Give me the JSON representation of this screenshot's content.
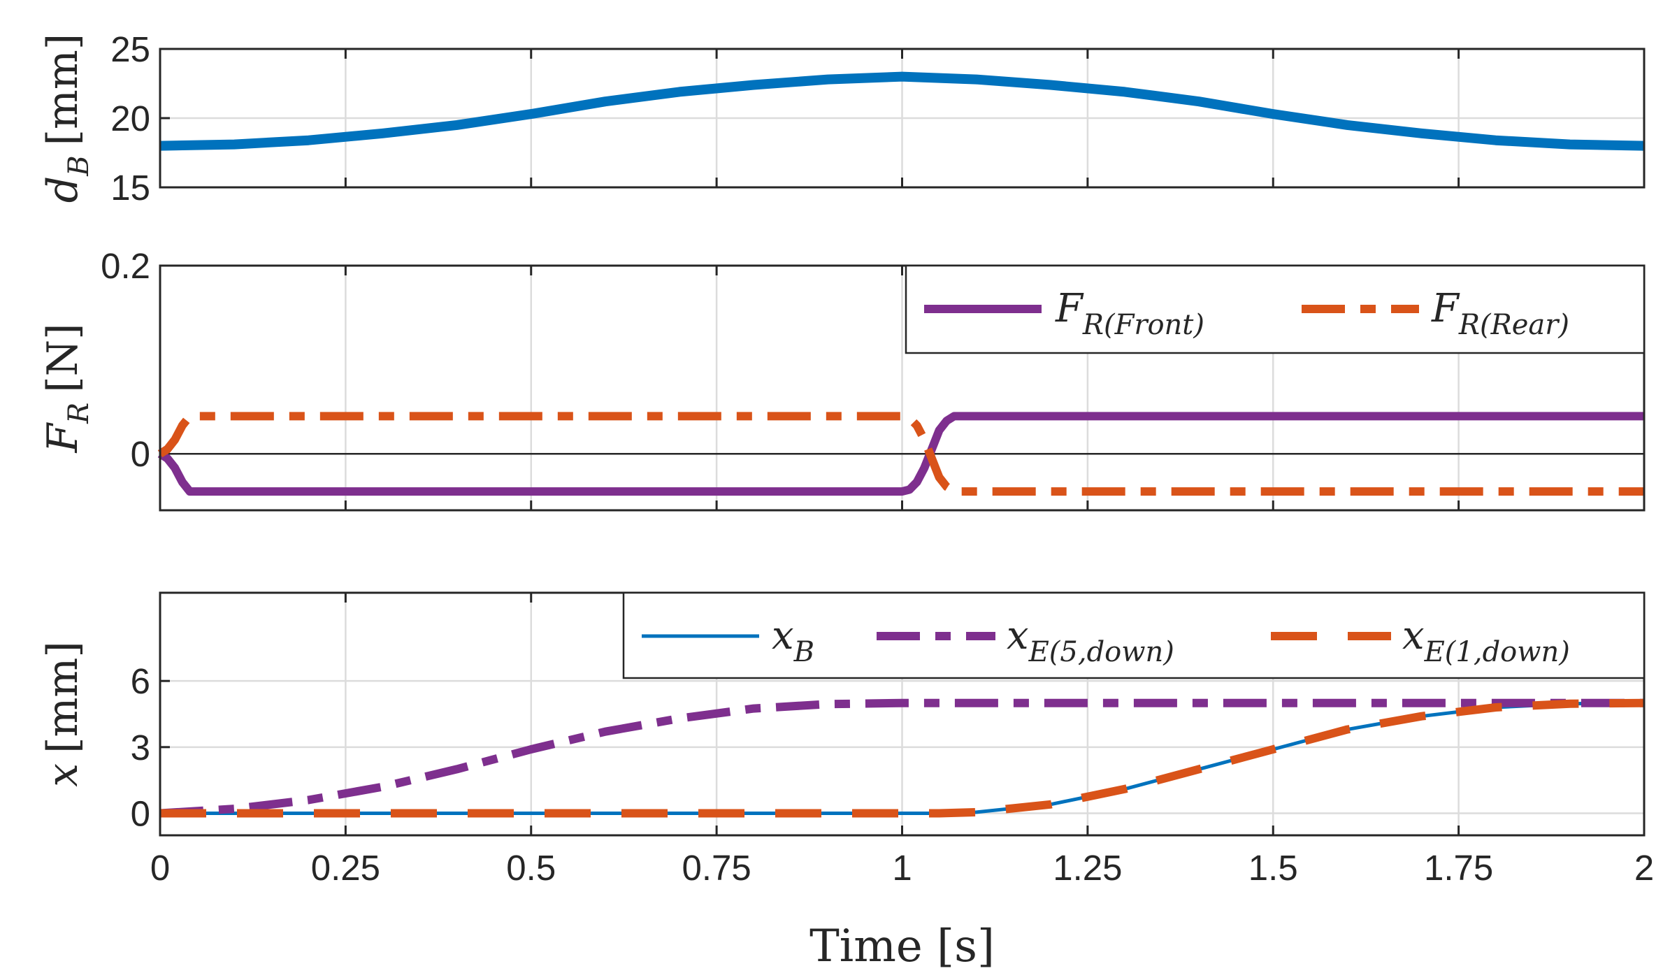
{
  "colors": {
    "blue": "#0072BD",
    "purple": "#7E2F8E",
    "orange": "#D95319",
    "axis": "#262626",
    "grid": "#dcdcdc"
  },
  "chart_data": [
    {
      "type": "line",
      "id": "top",
      "ylabel": {
        "main": "d",
        "sub": "B",
        "unit": "[mm]"
      },
      "xlim": [
        0,
        2
      ],
      "ylim": [
        15,
        25
      ],
      "yticks": [
        15,
        20,
        25
      ],
      "ytick_labels": [
        "15",
        "20",
        "25"
      ],
      "xticks": [
        0,
        0.25,
        0.5,
        0.75,
        1,
        1.25,
        1.5,
        1.75,
        2
      ],
      "grid": true,
      "series": [
        {
          "name": "d_B",
          "style": "solid-thick",
          "color": "#0072BD",
          "x": [
            0,
            0.1,
            0.2,
            0.3,
            0.4,
            0.5,
            0.6,
            0.7,
            0.8,
            0.9,
            1.0,
            1.1,
            1.2,
            1.3,
            1.4,
            1.5,
            1.6,
            1.7,
            1.8,
            1.9,
            2.0
          ],
          "y": [
            18.0,
            18.1,
            18.4,
            18.9,
            19.5,
            20.3,
            21.2,
            21.9,
            22.4,
            22.8,
            23.0,
            22.8,
            22.4,
            21.9,
            21.2,
            20.3,
            19.5,
            18.9,
            18.4,
            18.1,
            18.0
          ]
        }
      ]
    },
    {
      "type": "line",
      "id": "middle",
      "ylabel": {
        "main": "F",
        "sub": "R",
        "unit": "[N]"
      },
      "xlim": [
        0,
        2
      ],
      "ylim": [
        -0.06,
        0.2
      ],
      "yticks": [
        0,
        0.2
      ],
      "ytick_labels": [
        "0",
        "0.2"
      ],
      "xticks": [
        0,
        0.25,
        0.5,
        0.75,
        1,
        1.25,
        1.5,
        1.75,
        2
      ],
      "grid": true,
      "zero_line": true,
      "legend": {
        "location": "top-right",
        "entries": [
          {
            "main": "F",
            "sub": "R(Front)"
          },
          {
            "main": "F",
            "sub": "R(Rear)"
          }
        ]
      },
      "series": [
        {
          "name": "F_R(Front)",
          "style": "solid",
          "color": "#7E2F8E",
          "x": [
            0,
            0.01,
            0.02,
            0.03,
            0.04,
            1.0,
            1.01,
            1.02,
            1.03,
            1.04,
            1.05,
            1.06,
            1.07,
            2.0
          ],
          "y": [
            0,
            -0.005,
            -0.015,
            -0.03,
            -0.04,
            -0.04,
            -0.038,
            -0.03,
            -0.015,
            0.005,
            0.025,
            0.035,
            0.04,
            0.04
          ]
        },
        {
          "name": "F_R(Rear)",
          "style": "dashdot",
          "color": "#D95319",
          "x": [
            0,
            0.01,
            0.02,
            0.03,
            0.04,
            1.0,
            1.01,
            1.02,
            1.03,
            1.04,
            1.05,
            1.06,
            1.07,
            2.0
          ],
          "y": [
            0,
            0.005,
            0.015,
            0.03,
            0.04,
            0.04,
            0.038,
            0.03,
            0.015,
            -0.005,
            -0.025,
            -0.035,
            -0.04,
            -0.04
          ]
        }
      ]
    },
    {
      "type": "line",
      "id": "bottom",
      "ylabel": {
        "main": "x",
        "sub": "",
        "unit": "[mm]"
      },
      "xlabel": "Time [s]",
      "xlim": [
        0,
        2
      ],
      "ylim": [
        -1,
        10
      ],
      "yticks": [
        0,
        3,
        6
      ],
      "ytick_labels": [
        "0",
        "3",
        "6"
      ],
      "xticks": [
        0,
        0.25,
        0.5,
        0.75,
        1,
        1.25,
        1.5,
        1.75,
        2
      ],
      "xtick_labels": [
        "0",
        "0.25",
        "0.5",
        "0.75",
        "1",
        "1.25",
        "1.5",
        "1.75",
        "2"
      ],
      "grid": true,
      "legend": {
        "location": "top-right",
        "entries": [
          {
            "main": "x",
            "sub": "B"
          },
          {
            "main": "x",
            "sub": "E(5,down)"
          },
          {
            "main": "x",
            "sub": "E(1,down)"
          }
        ]
      },
      "series": [
        {
          "name": "x_B",
          "style": "solid-thin",
          "color": "#0072BD",
          "x": [
            0,
            1.05,
            1.1,
            1.2,
            1.3,
            1.4,
            1.5,
            1.6,
            1.7,
            1.8,
            1.9,
            2.0
          ],
          "y": [
            0,
            0,
            0.05,
            0.4,
            1.1,
            2.0,
            2.9,
            3.8,
            4.4,
            4.8,
            4.97,
            5.0
          ]
        },
        {
          "name": "x_E(5,down)",
          "style": "dashdot",
          "color": "#7E2F8E",
          "x": [
            0,
            0.1,
            0.2,
            0.3,
            0.4,
            0.5,
            0.6,
            0.7,
            0.8,
            0.9,
            1.0,
            2.0
          ],
          "y": [
            0,
            0.2,
            0.6,
            1.2,
            2.0,
            2.9,
            3.7,
            4.3,
            4.75,
            4.95,
            5.0,
            5.0
          ]
        },
        {
          "name": "x_E(1,down)",
          "style": "dashed",
          "color": "#D95319",
          "x": [
            0,
            1.05,
            1.1,
            1.2,
            1.3,
            1.4,
            1.5,
            1.6,
            1.7,
            1.8,
            1.9,
            2.0
          ],
          "y": [
            0,
            0,
            0.05,
            0.4,
            1.1,
            2.0,
            2.9,
            3.8,
            4.4,
            4.8,
            4.97,
            5.0
          ]
        }
      ]
    }
  ]
}
